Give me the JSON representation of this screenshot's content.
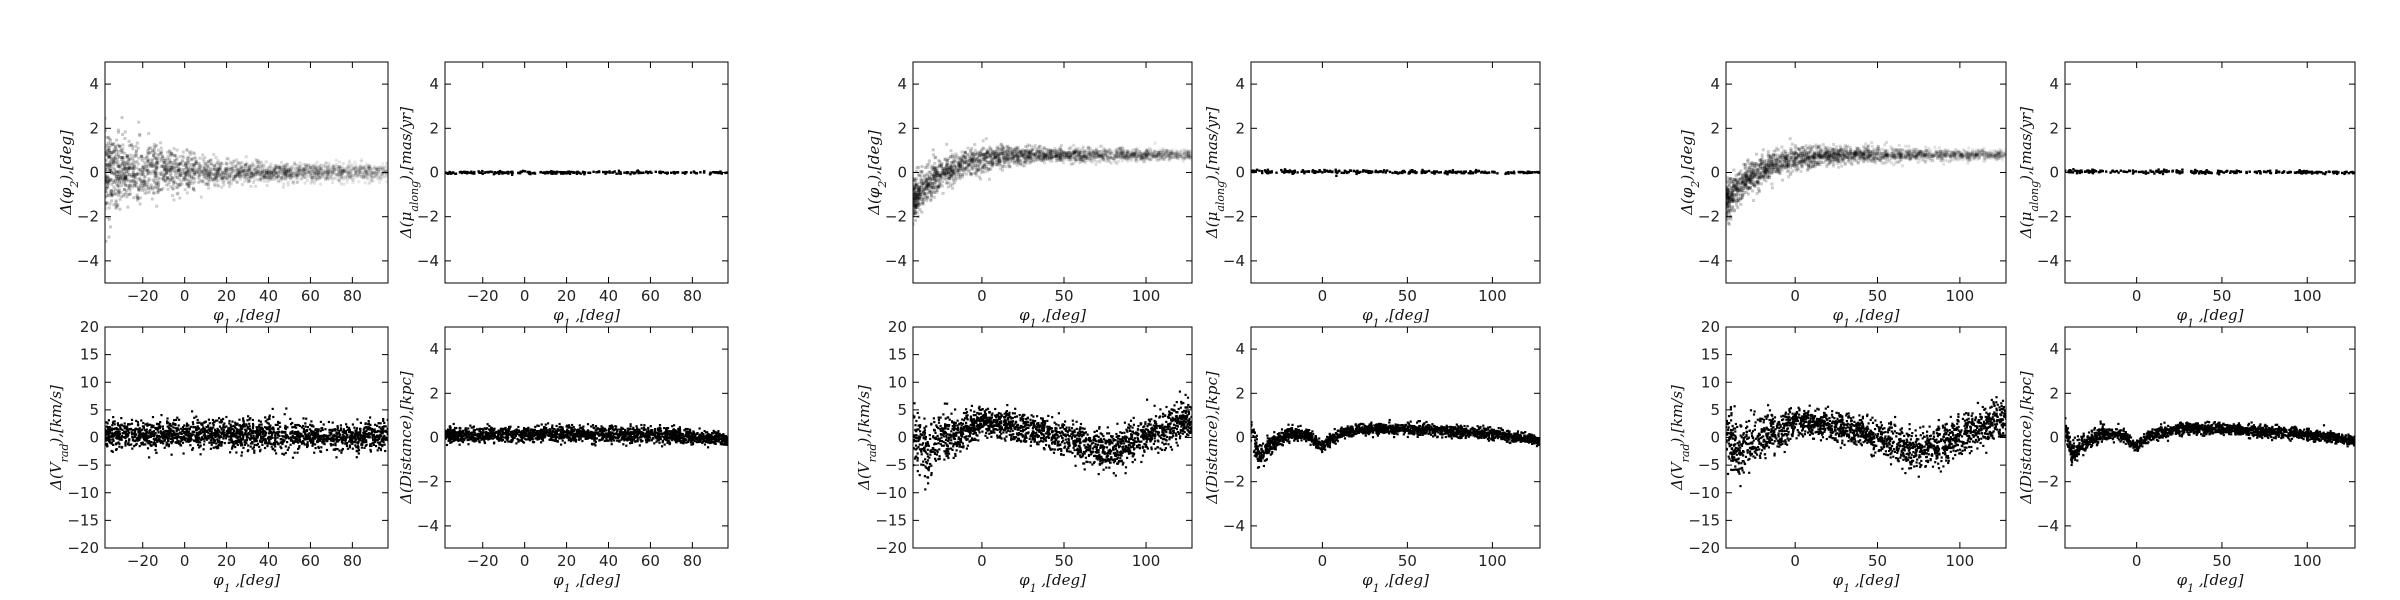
{
  "chart_data": [
    {
      "type": "scatter",
      "group": "left",
      "panel": "top-left",
      "xlabel": "φ1 ,[deg]",
      "ylabel": "Δ(φ2),[deg]",
      "xlim": [
        -38,
        97
      ],
      "ylim": [
        -5,
        5
      ],
      "xticks": [
        -20,
        0,
        20,
        40,
        60,
        80
      ],
      "yticks": [
        -4,
        -2,
        0,
        2,
        4
      ],
      "style": "density",
      "band": [
        [
          -38,
          0,
          0.9
        ],
        [
          -20,
          0,
          0.7
        ],
        [
          0,
          0,
          0.45
        ],
        [
          20,
          0,
          0.25
        ],
        [
          40,
          0,
          0.2
        ],
        [
          60,
          0,
          0.2
        ],
        [
          80,
          0,
          0.2
        ],
        [
          97,
          0,
          0.2
        ]
      ]
    },
    {
      "type": "scatter",
      "group": "left",
      "panel": "top-right",
      "xlabel": "φ1 ,[deg]",
      "ylabel": "Δ(μalong),[mas/yr]",
      "xlim": [
        -38,
        97
      ],
      "ylim": [
        -5,
        5
      ],
      "xticks": [
        -20,
        0,
        20,
        40,
        60,
        80
      ],
      "yticks": [
        -4,
        -2,
        0,
        2,
        4
      ],
      "style": "line",
      "band": [
        [
          -38,
          0,
          0.05
        ],
        [
          97,
          0,
          0.05
        ]
      ]
    },
    {
      "type": "scatter",
      "group": "left",
      "panel": "bottom-left",
      "xlabel": "φ1 ,[deg]",
      "ylabel": "Δ(Vrad),[km/s]",
      "xlim": [
        -38,
        97
      ],
      "ylim": [
        -20,
        20
      ],
      "xticks": [
        -20,
        0,
        20,
        40,
        60,
        80
      ],
      "yticks": [
        -20,
        -15,
        -10,
        -5,
        0,
        5,
        10,
        15,
        20
      ],
      "style": "points",
      "band": [
        [
          -38,
          0.5,
          1.6
        ],
        [
          0,
          0.5,
          1.5
        ],
        [
          40,
          0.4,
          1.6
        ],
        [
          70,
          0,
          1.4
        ],
        [
          97,
          0.5,
          1.5
        ]
      ]
    },
    {
      "type": "scatter",
      "group": "left",
      "panel": "bottom-right",
      "xlabel": "φ1 ,[deg]",
      "ylabel": "Δ(Distance),[kpc]",
      "xlim": [
        -38,
        97
      ],
      "ylim": [
        -5,
        5
      ],
      "xticks": [
        -20,
        0,
        20,
        40,
        60,
        80
      ],
      "yticks": [
        -4,
        -2,
        0,
        2,
        4
      ],
      "style": "points",
      "band": [
        [
          -38,
          0.1,
          0.2
        ],
        [
          0,
          0.15,
          0.2
        ],
        [
          40,
          0.15,
          0.22
        ],
        [
          70,
          0.1,
          0.2
        ],
        [
          97,
          -0.1,
          0.15
        ]
      ]
    },
    {
      "type": "scatter",
      "group": "middle",
      "panel": "top-left",
      "xlabel": "φ1 ,[deg]",
      "ylabel": "Δ(φ2),[deg]",
      "xlim": [
        -42,
        128
      ],
      "ylim": [
        -5,
        5
      ],
      "xticks": [
        0,
        50,
        100
      ],
      "yticks": [
        -4,
        -2,
        0,
        2,
        4
      ],
      "style": "density",
      "band": [
        [
          -40,
          -1.2,
          0.5
        ],
        [
          -30,
          -0.3,
          0.4
        ],
        [
          -15,
          0.3,
          0.3
        ],
        [
          0,
          0.6,
          0.3
        ],
        [
          20,
          0.75,
          0.2
        ],
        [
          50,
          0.8,
          0.15
        ],
        [
          80,
          0.8,
          0.15
        ],
        [
          128,
          0.8,
          0.1
        ]
      ]
    },
    {
      "type": "scatter",
      "group": "middle",
      "panel": "top-right",
      "xlabel": "φ1 ,[deg]",
      "ylabel": "Δ(μalong),[mas/yr]",
      "xlim": [
        -42,
        128
      ],
      "ylim": [
        -5,
        5
      ],
      "xticks": [
        0,
        50,
        100
      ],
      "yticks": [
        -4,
        -2,
        0,
        2,
        4
      ],
      "style": "line",
      "band": [
        [
          -42,
          0.05,
          0.07
        ],
        [
          128,
          0,
          0.05
        ]
      ]
    },
    {
      "type": "scatter",
      "group": "middle",
      "panel": "bottom-left",
      "xlabel": "φ1 ,[deg]",
      "ylabel": "Δ(Vrad),[km/s]",
      "xlim": [
        -42,
        128
      ],
      "ylim": [
        -20,
        20
      ],
      "xticks": [
        0,
        50,
        100
      ],
      "yticks": [
        -20,
        -15,
        -10,
        -5,
        0,
        5,
        10,
        15,
        20
      ],
      "style": "points",
      "band": [
        [
          -40,
          0,
          3
        ],
        [
          -35,
          -3,
          3
        ],
        [
          -25,
          0,
          2.5
        ],
        [
          -10,
          1,
          2
        ],
        [
          0,
          3,
          1.5
        ],
        [
          20,
          2,
          1.5
        ],
        [
          40,
          1,
          1.6
        ],
        [
          60,
          -1,
          2
        ],
        [
          75,
          -2.5,
          2
        ],
        [
          90,
          -1,
          2
        ],
        [
          110,
          1.5,
          2
        ],
        [
          128,
          3.5,
          2
        ]
      ]
    },
    {
      "type": "scatter",
      "group": "middle",
      "panel": "bottom-right",
      "xlabel": "φ1 ,[deg]",
      "ylabel": "Δ(Distance),[kpc]",
      "xlim": [
        -42,
        128
      ],
      "ylim": [
        -5,
        5
      ],
      "xticks": [
        0,
        50,
        100
      ],
      "yticks": [
        -4,
        -2,
        0,
        2,
        4
      ],
      "style": "points",
      "band": [
        [
          -42,
          0.5,
          0.3
        ],
        [
          -38,
          -0.8,
          0.3
        ],
        [
          -30,
          -0.3,
          0.25
        ],
        [
          -20,
          0.2,
          0.2
        ],
        [
          -8,
          0.1,
          0.15
        ],
        [
          0,
          -0.4,
          0.15
        ],
        [
          10,
          0.2,
          0.15
        ],
        [
          30,
          0.4,
          0.15
        ],
        [
          60,
          0.35,
          0.15
        ],
        [
          100,
          0.15,
          0.15
        ],
        [
          128,
          -0.15,
          0.12
        ]
      ]
    },
    {
      "type": "scatter",
      "group": "right",
      "panel": "top-left",
      "xlabel": "φ1 ,[deg]",
      "ylabel": "Δ(φ2),[deg]",
      "xlim": [
        -42,
        128
      ],
      "ylim": [
        -5,
        5
      ],
      "xticks": [
        0,
        50,
        100
      ],
      "yticks": [
        -4,
        -2,
        0,
        2,
        4
      ],
      "style": "density",
      "band": [
        [
          -40,
          -1.2,
          0.5
        ],
        [
          -30,
          -0.3,
          0.4
        ],
        [
          -15,
          0.3,
          0.3
        ],
        [
          0,
          0.6,
          0.3
        ],
        [
          20,
          0.75,
          0.2
        ],
        [
          50,
          0.8,
          0.15
        ],
        [
          80,
          0.8,
          0.15
        ],
        [
          128,
          0.8,
          0.1
        ]
      ]
    },
    {
      "type": "scatter",
      "group": "right",
      "panel": "top-right",
      "xlabel": "φ1 ,[deg]",
      "ylabel": "Δ(μalong),[mas/yr]",
      "xlim": [
        -42,
        128
      ],
      "ylim": [
        -5,
        5
      ],
      "xticks": [
        0,
        50,
        100
      ],
      "yticks": [
        -4,
        -2,
        0,
        2,
        4
      ],
      "style": "line",
      "band": [
        [
          -42,
          0.05,
          0.07
        ],
        [
          128,
          0,
          0.05
        ]
      ]
    },
    {
      "type": "scatter",
      "group": "right",
      "panel": "bottom-left",
      "xlabel": "φ1 ,[deg]",
      "ylabel": "Δ(Vrad),[km/s]",
      "xlim": [
        -42,
        128
      ],
      "ylim": [
        -20,
        20
      ],
      "xticks": [
        0,
        50,
        100
      ],
      "yticks": [
        -20,
        -15,
        -10,
        -5,
        0,
        5,
        10,
        15,
        20
      ],
      "style": "points",
      "band": [
        [
          -40,
          0,
          3
        ],
        [
          -35,
          -3,
          3
        ],
        [
          -25,
          0,
          2.5
        ],
        [
          -10,
          1,
          2
        ],
        [
          0,
          3,
          1.5
        ],
        [
          20,
          2,
          1.5
        ],
        [
          40,
          1,
          1.6
        ],
        [
          60,
          -1,
          2
        ],
        [
          75,
          -2.5,
          2
        ],
        [
          90,
          -1,
          2
        ],
        [
          110,
          1.5,
          2
        ],
        [
          128,
          3.5,
          2
        ]
      ]
    },
    {
      "type": "scatter",
      "group": "right",
      "panel": "bottom-right",
      "xlabel": "φ1 ,[deg]",
      "ylabel": "Δ(Distance),[kpc]",
      "xlim": [
        -42,
        128
      ],
      "ylim": [
        -5,
        5
      ],
      "xticks": [
        0,
        50,
        100
      ],
      "yticks": [
        -4,
        -2,
        0,
        2,
        4
      ],
      "style": "points",
      "band": [
        [
          -42,
          0.5,
          0.3
        ],
        [
          -38,
          -0.8,
          0.3
        ],
        [
          -30,
          -0.3,
          0.25
        ],
        [
          -20,
          0.2,
          0.2
        ],
        [
          -8,
          0.1,
          0.15
        ],
        [
          0,
          -0.4,
          0.15
        ],
        [
          10,
          0.2,
          0.15
        ],
        [
          30,
          0.4,
          0.15
        ],
        [
          60,
          0.35,
          0.15
        ],
        [
          100,
          0.15,
          0.15
        ],
        [
          128,
          -0.15,
          0.12
        ]
      ]
    }
  ]
}
